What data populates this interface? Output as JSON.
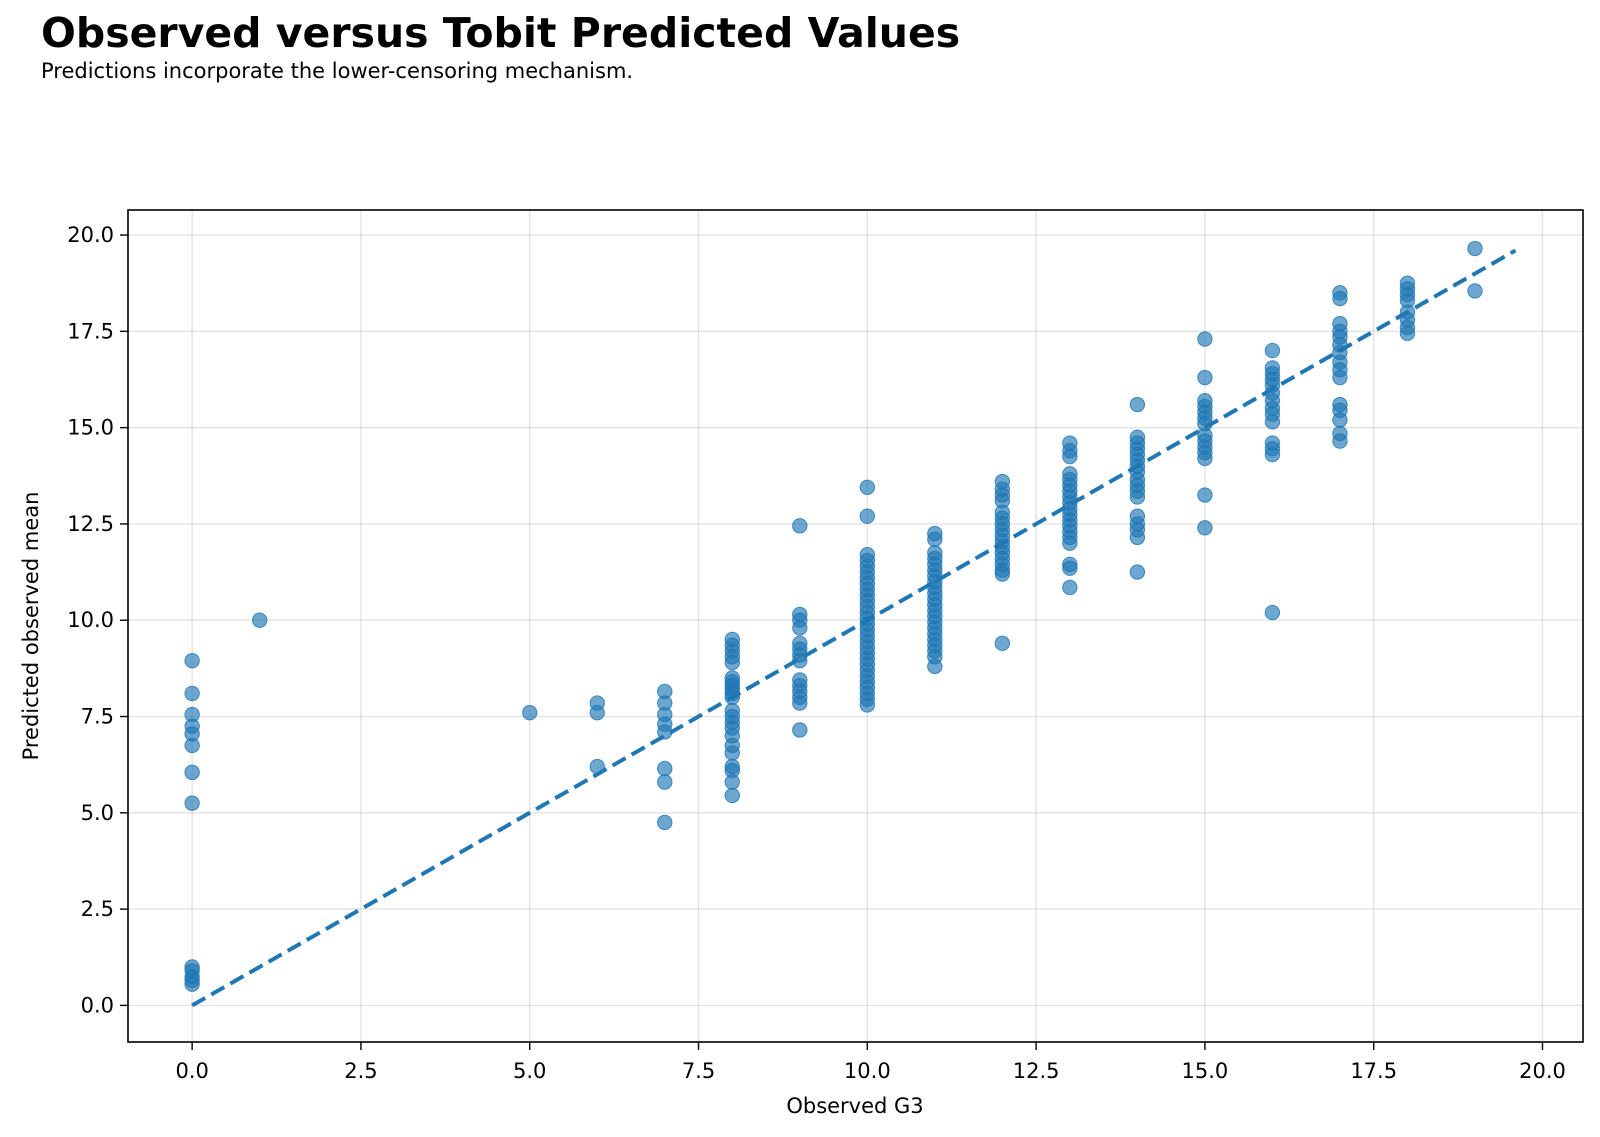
{
  "chart_data": {
    "type": "scatter",
    "title": "Observed versus Tobit Predicted Values",
    "subtitle": "Predictions incorporate the lower-censoring mechanism.",
    "xlabel": "Observed G3",
    "ylabel": "Predicted observed mean",
    "xlim": [
      -0.95,
      20.6
    ],
    "ylim": [
      -0.95,
      20.65
    ],
    "xticks": [
      0.0,
      2.5,
      5.0,
      7.5,
      10.0,
      12.5,
      15.0,
      17.5,
      20.0
    ],
    "yticks": [
      0.0,
      2.5,
      5.0,
      7.5,
      10.0,
      12.5,
      15.0,
      17.5,
      20.0
    ],
    "grid": true,
    "marker_color": "#1f77b4",
    "marker_opacity": 0.65,
    "reference_line": {
      "style": "dashed",
      "color": "#1f77b4",
      "x": [
        0,
        19.6
      ],
      "y": [
        0,
        19.6
      ]
    },
    "points": [
      [
        0,
        8.95
      ],
      [
        0,
        8.1
      ],
      [
        0,
        7.55
      ],
      [
        0,
        7.25
      ],
      [
        0,
        7.05
      ],
      [
        0,
        6.75
      ],
      [
        0,
        6.05
      ],
      [
        0,
        5.25
      ],
      [
        0,
        1.0
      ],
      [
        0,
        0.9
      ],
      [
        0,
        0.75
      ],
      [
        0,
        0.65
      ],
      [
        0,
        0.55
      ],
      [
        1,
        10.0
      ],
      [
        5,
        7.6
      ],
      [
        6,
        7.85
      ],
      [
        6,
        7.6
      ],
      [
        6,
        6.2
      ],
      [
        7,
        8.15
      ],
      [
        7,
        7.85
      ],
      [
        7,
        7.55
      ],
      [
        7,
        7.3
      ],
      [
        7,
        7.1
      ],
      [
        7,
        6.15
      ],
      [
        7,
        5.8
      ],
      [
        7,
        4.75
      ],
      [
        8,
        9.5
      ],
      [
        8,
        9.35
      ],
      [
        8,
        9.2
      ],
      [
        8,
        9.05
      ],
      [
        8,
        8.9
      ],
      [
        8,
        8.5
      ],
      [
        8,
        8.4
      ],
      [
        8,
        8.3
      ],
      [
        8,
        8.2
      ],
      [
        8,
        8.1
      ],
      [
        8,
        8.0
      ],
      [
        8,
        7.65
      ],
      [
        8,
        7.5
      ],
      [
        8,
        7.35
      ],
      [
        8,
        7.2
      ],
      [
        8,
        7.0
      ],
      [
        8,
        6.75
      ],
      [
        8,
        6.55
      ],
      [
        8,
        6.2
      ],
      [
        8,
        6.1
      ],
      [
        8,
        5.8
      ],
      [
        8,
        5.45
      ],
      [
        9,
        12.45
      ],
      [
        9,
        10.15
      ],
      [
        9,
        10.0
      ],
      [
        9,
        9.8
      ],
      [
        9,
        9.4
      ],
      [
        9,
        9.25
      ],
      [
        9,
        9.1
      ],
      [
        9,
        8.95
      ],
      [
        9,
        8.45
      ],
      [
        9,
        8.3
      ],
      [
        9,
        8.15
      ],
      [
        9,
        8.0
      ],
      [
        9,
        7.85
      ],
      [
        9,
        7.15
      ],
      [
        10,
        13.45
      ],
      [
        10,
        12.7
      ],
      [
        10,
        11.7
      ],
      [
        10,
        11.55
      ],
      [
        10,
        11.4
      ],
      [
        10,
        11.25
      ],
      [
        10,
        11.1
      ],
      [
        10,
        10.95
      ],
      [
        10,
        10.8
      ],
      [
        10,
        10.65
      ],
      [
        10,
        10.5
      ],
      [
        10,
        10.35
      ],
      [
        10,
        10.2
      ],
      [
        10,
        10.05
      ],
      [
        10,
        9.9
      ],
      [
        10,
        9.75
      ],
      [
        10,
        9.6
      ],
      [
        10,
        9.45
      ],
      [
        10,
        9.3
      ],
      [
        10,
        9.15
      ],
      [
        10,
        9.0
      ],
      [
        10,
        8.85
      ],
      [
        10,
        8.7
      ],
      [
        10,
        8.55
      ],
      [
        10,
        8.4
      ],
      [
        10,
        8.25
      ],
      [
        10,
        8.1
      ],
      [
        10,
        7.95
      ],
      [
        10,
        7.8
      ],
      [
        11,
        12.25
      ],
      [
        11,
        12.1
      ],
      [
        11,
        11.75
      ],
      [
        11,
        11.6
      ],
      [
        11,
        11.45
      ],
      [
        11,
        11.3
      ],
      [
        11,
        11.15
      ],
      [
        11,
        11.0
      ],
      [
        11,
        10.85
      ],
      [
        11,
        10.7
      ],
      [
        11,
        10.55
      ],
      [
        11,
        10.4
      ],
      [
        11,
        10.25
      ],
      [
        11,
        10.1
      ],
      [
        11,
        9.95
      ],
      [
        11,
        9.8
      ],
      [
        11,
        9.65
      ],
      [
        11,
        9.5
      ],
      [
        11,
        9.35
      ],
      [
        11,
        9.2
      ],
      [
        11,
        9.05
      ],
      [
        11,
        8.8
      ],
      [
        12,
        13.6
      ],
      [
        12,
        13.4
      ],
      [
        12,
        13.25
      ],
      [
        12,
        13.1
      ],
      [
        12,
        12.8
      ],
      [
        12,
        12.65
      ],
      [
        12,
        12.5
      ],
      [
        12,
        12.35
      ],
      [
        12,
        12.2
      ],
      [
        12,
        12.05
      ],
      [
        12,
        11.9
      ],
      [
        12,
        11.75
      ],
      [
        12,
        11.6
      ],
      [
        12,
        11.45
      ],
      [
        12,
        11.3
      ],
      [
        12,
        11.2
      ],
      [
        12,
        9.4
      ],
      [
        13,
        14.6
      ],
      [
        13,
        14.4
      ],
      [
        13,
        14.25
      ],
      [
        13,
        13.8
      ],
      [
        13,
        13.65
      ],
      [
        13,
        13.5
      ],
      [
        13,
        13.35
      ],
      [
        13,
        13.2
      ],
      [
        13,
        13.05
      ],
      [
        13,
        12.9
      ],
      [
        13,
        12.75
      ],
      [
        13,
        12.6
      ],
      [
        13,
        12.45
      ],
      [
        13,
        12.3
      ],
      [
        13,
        12.15
      ],
      [
        13,
        12.0
      ],
      [
        13,
        11.45
      ],
      [
        13,
        11.35
      ],
      [
        13,
        10.85
      ],
      [
        14,
        15.6
      ],
      [
        14,
        14.75
      ],
      [
        14,
        14.6
      ],
      [
        14,
        14.45
      ],
      [
        14,
        14.3
      ],
      [
        14,
        14.15
      ],
      [
        14,
        14.0
      ],
      [
        14,
        13.85
      ],
      [
        14,
        13.65
      ],
      [
        14,
        13.5
      ],
      [
        14,
        13.35
      ],
      [
        14,
        13.2
      ],
      [
        14,
        12.7
      ],
      [
        14,
        12.5
      ],
      [
        14,
        12.35
      ],
      [
        14,
        12.15
      ],
      [
        14,
        11.25
      ],
      [
        15,
        17.3
      ],
      [
        15,
        16.3
      ],
      [
        15,
        15.7
      ],
      [
        15,
        15.55
      ],
      [
        15,
        15.4
      ],
      [
        15,
        15.25
      ],
      [
        15,
        15.1
      ],
      [
        15,
        14.8
      ],
      [
        15,
        14.65
      ],
      [
        15,
        14.5
      ],
      [
        15,
        14.35
      ],
      [
        15,
        14.2
      ],
      [
        15,
        13.25
      ],
      [
        15,
        12.4
      ],
      [
        16,
        17.0
      ],
      [
        16,
        16.55
      ],
      [
        16,
        16.4
      ],
      [
        16,
        16.25
      ],
      [
        16,
        16.1
      ],
      [
        16,
        15.9
      ],
      [
        16,
        15.7
      ],
      [
        16,
        15.5
      ],
      [
        16,
        15.35
      ],
      [
        16,
        15.15
      ],
      [
        16,
        14.6
      ],
      [
        16,
        14.45
      ],
      [
        16,
        14.3
      ],
      [
        16,
        10.2
      ],
      [
        17,
        18.5
      ],
      [
        17,
        18.35
      ],
      [
        17,
        17.7
      ],
      [
        17,
        17.5
      ],
      [
        17,
        17.35
      ],
      [
        17,
        17.15
      ],
      [
        17,
        16.95
      ],
      [
        17,
        16.7
      ],
      [
        17,
        16.5
      ],
      [
        17,
        16.3
      ],
      [
        17,
        15.6
      ],
      [
        17,
        15.45
      ],
      [
        17,
        15.2
      ],
      [
        17,
        14.85
      ],
      [
        17,
        14.65
      ],
      [
        18,
        18.75
      ],
      [
        18,
        18.6
      ],
      [
        18,
        18.45
      ],
      [
        18,
        18.3
      ],
      [
        18,
        18.0
      ],
      [
        18,
        17.8
      ],
      [
        18,
        17.6
      ],
      [
        18,
        17.45
      ],
      [
        19,
        19.65
      ],
      [
        19,
        18.55
      ]
    ]
  }
}
